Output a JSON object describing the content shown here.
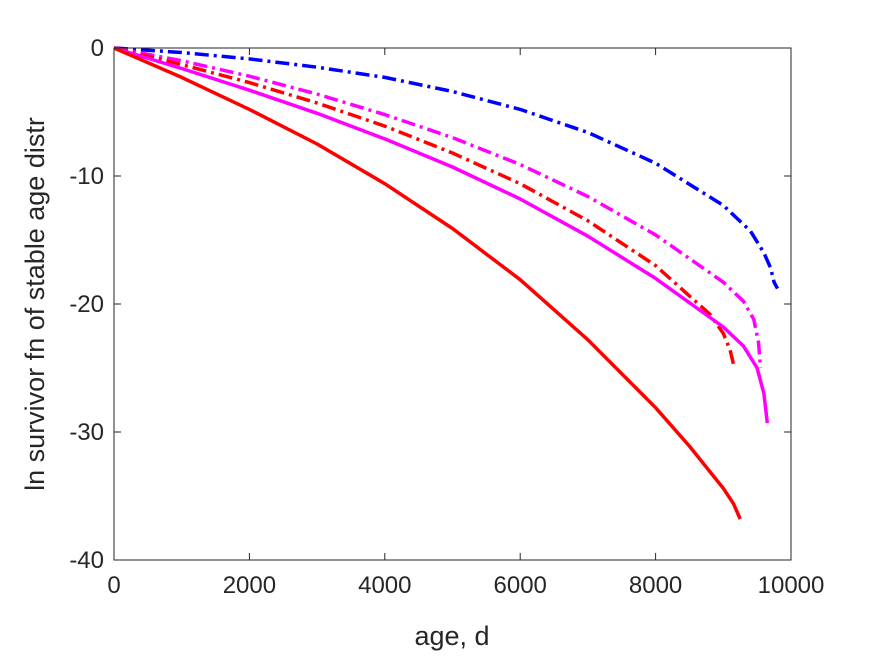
{
  "chart_data": {
    "type": "line",
    "title": "",
    "xlabel": "age, d",
    "ylabel": "ln survivor fn of stable age distr",
    "xlim": [
      0,
      10000
    ],
    "ylim": [
      -40,
      0
    ],
    "x_ticks": [
      0,
      2000,
      4000,
      6000,
      8000,
      10000
    ],
    "x_tick_labels": [
      "0",
      "2000",
      "4000",
      "6000",
      "8000",
      "10000"
    ],
    "y_ticks": [
      0,
      -10,
      -20,
      -30,
      -40
    ],
    "y_tick_labels": [
      "0",
      "-10",
      "-20",
      "-30",
      "-40"
    ],
    "grid": false,
    "legend": "none",
    "series": [
      {
        "color": "#0000ff",
        "dash": "dash-dot",
        "points": [
          [
            0,
            0
          ],
          [
            1000,
            -0.35
          ],
          [
            2000,
            -0.85
          ],
          [
            3000,
            -1.5
          ],
          [
            4000,
            -2.3
          ],
          [
            5000,
            -3.4
          ],
          [
            6000,
            -4.8
          ],
          [
            7000,
            -6.6
          ],
          [
            8000,
            -9.0
          ],
          [
            9000,
            -12.3
          ],
          [
            9400,
            -14.3
          ],
          [
            9600,
            -16.0
          ],
          [
            9700,
            -17.2
          ],
          [
            9750,
            -18.3
          ],
          [
            9800,
            -18.8
          ]
        ]
      },
      {
        "color": "#ff00ff",
        "dash": "dash-dot",
        "points": [
          [
            0,
            0
          ],
          [
            1000,
            -1.0
          ],
          [
            2000,
            -2.2
          ],
          [
            3000,
            -3.6
          ],
          [
            4000,
            -5.2
          ],
          [
            5000,
            -7.0
          ],
          [
            6000,
            -9.1
          ],
          [
            7000,
            -11.6
          ],
          [
            8000,
            -14.6
          ],
          [
            9000,
            -18.3
          ],
          [
            9300,
            -19.8
          ],
          [
            9450,
            -21.2
          ],
          [
            9520,
            -23.0
          ],
          [
            9550,
            -25.0
          ]
        ]
      },
      {
        "color": "#ff0000",
        "dash": "dash-dot",
        "points": [
          [
            0,
            0
          ],
          [
            1000,
            -1.3
          ],
          [
            2000,
            -2.7
          ],
          [
            3000,
            -4.3
          ],
          [
            4000,
            -6.1
          ],
          [
            5000,
            -8.2
          ],
          [
            6000,
            -10.6
          ],
          [
            7000,
            -13.5
          ],
          [
            8000,
            -17.0
          ],
          [
            8800,
            -20.8
          ],
          [
            9000,
            -22.3
          ],
          [
            9100,
            -23.6
          ],
          [
            9150,
            -24.7
          ]
        ]
      },
      {
        "color": "#ff00ff",
        "dash": "solid",
        "points": [
          [
            0,
            0
          ],
          [
            1000,
            -1.6
          ],
          [
            2000,
            -3.3
          ],
          [
            3000,
            -5.1
          ],
          [
            4000,
            -7.1
          ],
          [
            5000,
            -9.3
          ],
          [
            6000,
            -11.8
          ],
          [
            7000,
            -14.7
          ],
          [
            8000,
            -18.0
          ],
          [
            9000,
            -21.8
          ],
          [
            9300,
            -23.3
          ],
          [
            9500,
            -25.0
          ],
          [
            9600,
            -27.0
          ],
          [
            9650,
            -29.3
          ]
        ]
      },
      {
        "color": "#ff0000",
        "dash": "solid",
        "points": [
          [
            0,
            0
          ],
          [
            1000,
            -2.3
          ],
          [
            2000,
            -4.8
          ],
          [
            3000,
            -7.5
          ],
          [
            4000,
            -10.6
          ],
          [
            5000,
            -14.1
          ],
          [
            6000,
            -18.1
          ],
          [
            7000,
            -22.8
          ],
          [
            8000,
            -28.1
          ],
          [
            8500,
            -31.1
          ],
          [
            9000,
            -34.4
          ],
          [
            9150,
            -35.6
          ],
          [
            9250,
            -36.8
          ]
        ]
      }
    ]
  }
}
